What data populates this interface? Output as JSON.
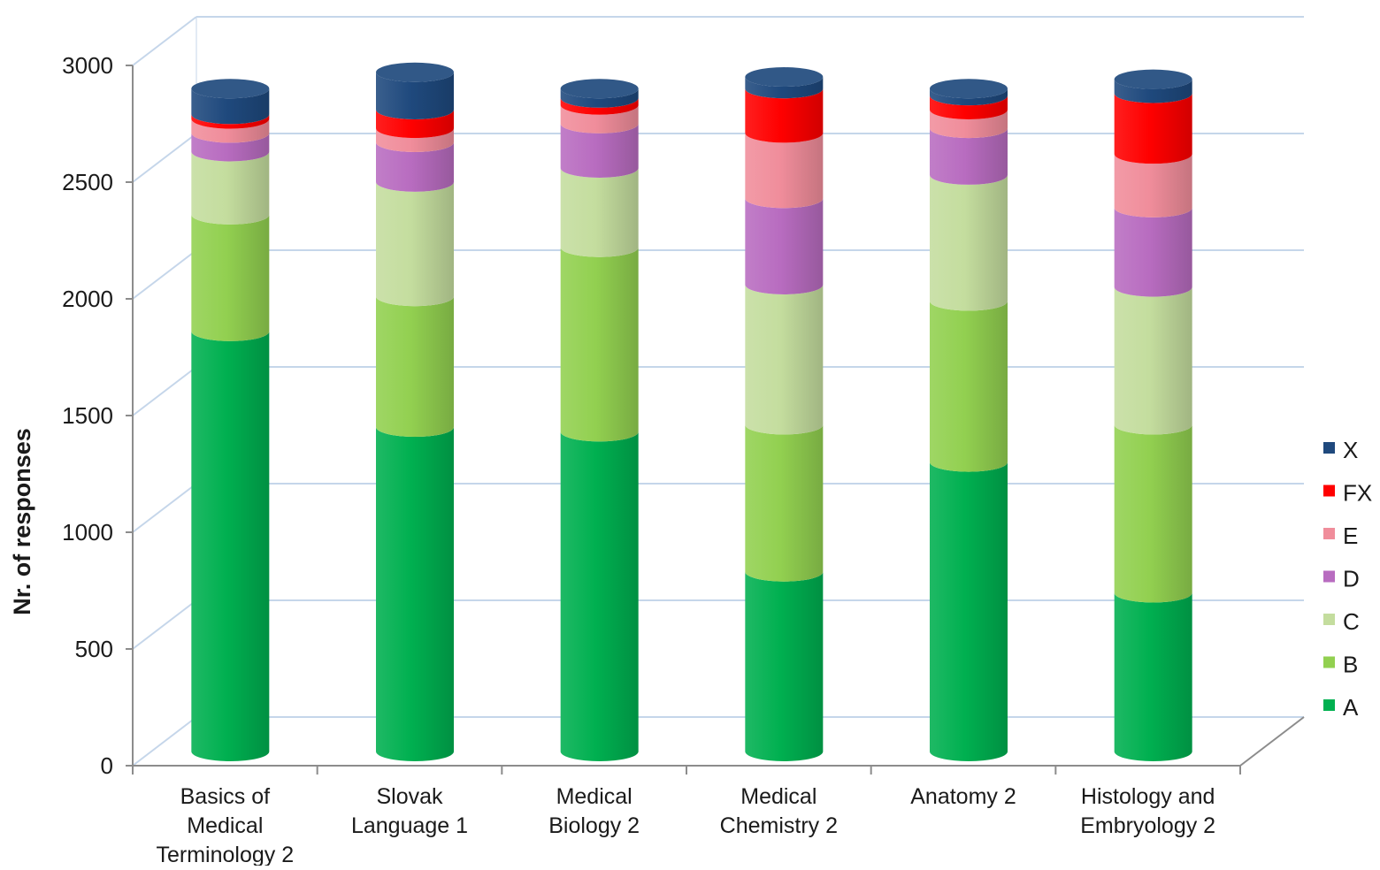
{
  "chart_data": {
    "type": "bar",
    "stacked": true,
    "style": "3d-cylinder",
    "ylabel": "Nr. of responses",
    "xlabel": "",
    "ylim": [
      0,
      3000
    ],
    "yticks": [
      0,
      500,
      1000,
      1500,
      2000,
      2500,
      3000
    ],
    "grid": true,
    "legend_position": "right",
    "categories": [
      "Basics of Medical Terminology 2",
      "Slovak Language 1",
      "Medical Biology 2",
      "Medical Chemistry 2",
      "Anatomy 2",
      "Histology and Embryology 2"
    ],
    "category_lines": [
      [
        "Basics of",
        "Medical",
        "Terminology 2"
      ],
      [
        "Slovak",
        "Language 1"
      ],
      [
        "Medical",
        "Biology 2"
      ],
      [
        "Medical",
        "Chemistry 2"
      ],
      [
        "Anatomy 2"
      ],
      [
        "Histology and",
        "Embryology 2"
      ]
    ],
    "series": [
      {
        "name": "A",
        "color": "#00b050",
        "values": [
          1800,
          1390,
          1370,
          770,
          1240,
          680
        ]
      },
      {
        "name": "B",
        "color": "#92d050",
        "values": [
          500,
          560,
          790,
          630,
          690,
          720
        ]
      },
      {
        "name": "C",
        "color": "#c4dd9e",
        "values": [
          270,
          490,
          340,
          600,
          540,
          590
        ]
      },
      {
        "name": "D",
        "color": "#b86cc0",
        "values": [
          80,
          170,
          190,
          370,
          200,
          340
        ]
      },
      {
        "name": "E",
        "color": "#f08d9b",
        "values": [
          60,
          60,
          80,
          280,
          80,
          230
        ]
      },
      {
        "name": "FX",
        "color": "#ff0000",
        "values": [
          20,
          80,
          30,
          190,
          60,
          260
        ]
      },
      {
        "name": "X",
        "color": "#1f497d",
        "values": [
          110,
          160,
          40,
          50,
          30,
          60
        ]
      }
    ]
  }
}
